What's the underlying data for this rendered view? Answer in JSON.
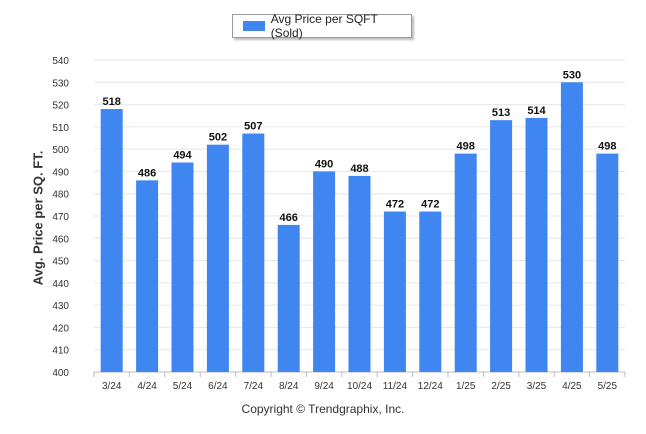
{
  "legend_label": "Avg Price per SQFT (Sold)",
  "footer": "Copyright © Trendgraphix, Inc.",
  "colors": {
    "bar": "#3f86f0",
    "grid": "#e6e6e6",
    "axis": "#bbbbbb",
    "text": "#333333"
  },
  "chart_data": {
    "type": "bar",
    "title": "",
    "xlabel": "",
    "ylabel": "Avg. Price per SQ. FT.",
    "categories": [
      "3/24",
      "4/24",
      "5/24",
      "6/24",
      "7/24",
      "8/24",
      "9/24",
      "10/24",
      "11/24",
      "12/24",
      "1/25",
      "2/25",
      "3/25",
      "4/25",
      "5/25"
    ],
    "series": [
      {
        "name": "Avg Price per SQFT (Sold)",
        "values": [
          518,
          486,
          494,
          502,
          507,
          466,
          490,
          488,
          472,
          472,
          498,
          513,
          514,
          530,
          498
        ]
      }
    ],
    "ylim": [
      400,
      540
    ],
    "yticks": [
      400,
      410,
      420,
      430,
      440,
      450,
      460,
      470,
      480,
      490,
      500,
      510,
      520,
      530,
      540
    ],
    "grid": true,
    "legend_position": "top-center",
    "data_labels": true
  }
}
